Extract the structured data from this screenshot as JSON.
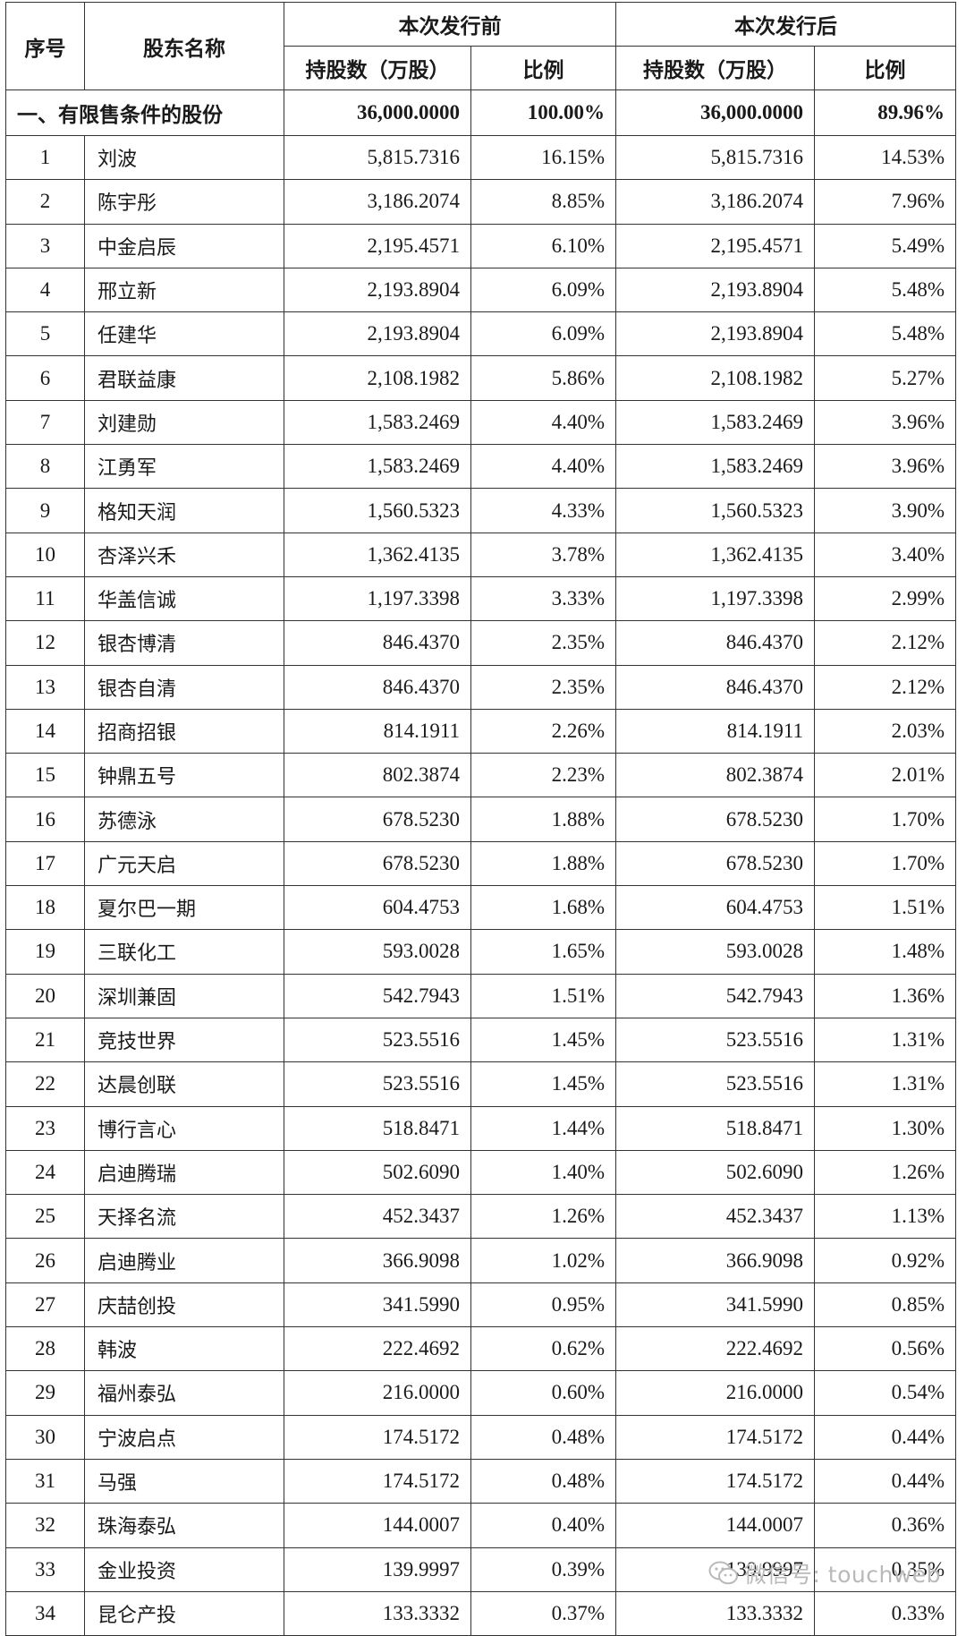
{
  "header": {
    "seq": "序号",
    "name": "股东名称",
    "before": "本次发行前",
    "after": "本次发行后",
    "shares": "持股数（万股）",
    "ratio": "比例"
  },
  "subtotal": {
    "label": "一、有限售条件的股份",
    "shares_before": "36,000.0000",
    "ratio_before": "100.00%",
    "shares_after": "36,000.0000",
    "ratio_after": "89.96%"
  },
  "rows": [
    {
      "seq": "1",
      "name": "刘波",
      "shares_before": "5,815.7316",
      "ratio_before": "16.15%",
      "shares_after": "5,815.7316",
      "ratio_after": "14.53%"
    },
    {
      "seq": "2",
      "name": "陈宇彤",
      "shares_before": "3,186.2074",
      "ratio_before": "8.85%",
      "shares_after": "3,186.2074",
      "ratio_after": "7.96%"
    },
    {
      "seq": "3",
      "name": "中金启辰",
      "shares_before": "2,195.4571",
      "ratio_before": "6.10%",
      "shares_after": "2,195.4571",
      "ratio_after": "5.49%"
    },
    {
      "seq": "4",
      "name": "邢立新",
      "shares_before": "2,193.8904",
      "ratio_before": "6.09%",
      "shares_after": "2,193.8904",
      "ratio_after": "5.48%"
    },
    {
      "seq": "5",
      "name": "任建华",
      "shares_before": "2,193.8904",
      "ratio_before": "6.09%",
      "shares_after": "2,193.8904",
      "ratio_after": "5.48%"
    },
    {
      "seq": "6",
      "name": "君联益康",
      "shares_before": "2,108.1982",
      "ratio_before": "5.86%",
      "shares_after": "2,108.1982",
      "ratio_after": "5.27%"
    },
    {
      "seq": "7",
      "name": "刘建勋",
      "shares_before": "1,583.2469",
      "ratio_before": "4.40%",
      "shares_after": "1,583.2469",
      "ratio_after": "3.96%"
    },
    {
      "seq": "8",
      "name": "江勇军",
      "shares_before": "1,583.2469",
      "ratio_before": "4.40%",
      "shares_after": "1,583.2469",
      "ratio_after": "3.96%"
    },
    {
      "seq": "9",
      "name": "格知天润",
      "shares_before": "1,560.5323",
      "ratio_before": "4.33%",
      "shares_after": "1,560.5323",
      "ratio_after": "3.90%"
    },
    {
      "seq": "10",
      "name": "杏泽兴禾",
      "shares_before": "1,362.4135",
      "ratio_before": "3.78%",
      "shares_after": "1,362.4135",
      "ratio_after": "3.40%"
    },
    {
      "seq": "11",
      "name": "华盖信诚",
      "shares_before": "1,197.3398",
      "ratio_before": "3.33%",
      "shares_after": "1,197.3398",
      "ratio_after": "2.99%"
    },
    {
      "seq": "12",
      "name": "银杏博清",
      "shares_before": "846.4370",
      "ratio_before": "2.35%",
      "shares_after": "846.4370",
      "ratio_after": "2.12%"
    },
    {
      "seq": "13",
      "name": "银杏自清",
      "shares_before": "846.4370",
      "ratio_before": "2.35%",
      "shares_after": "846.4370",
      "ratio_after": "2.12%"
    },
    {
      "seq": "14",
      "name": "招商招银",
      "shares_before": "814.1911",
      "ratio_before": "2.26%",
      "shares_after": "814.1911",
      "ratio_after": "2.03%"
    },
    {
      "seq": "15",
      "name": "钟鼎五号",
      "shares_before": "802.3874",
      "ratio_before": "2.23%",
      "shares_after": "802.3874",
      "ratio_after": "2.01%"
    },
    {
      "seq": "16",
      "name": "苏德泳",
      "shares_before": "678.5230",
      "ratio_before": "1.88%",
      "shares_after": "678.5230",
      "ratio_after": "1.70%"
    },
    {
      "seq": "17",
      "name": "广元天启",
      "shares_before": "678.5230",
      "ratio_before": "1.88%",
      "shares_after": "678.5230",
      "ratio_after": "1.70%"
    },
    {
      "seq": "18",
      "name": "夏尔巴一期",
      "shares_before": "604.4753",
      "ratio_before": "1.68%",
      "shares_after": "604.4753",
      "ratio_after": "1.51%"
    },
    {
      "seq": "19",
      "name": "三联化工",
      "shares_before": "593.0028",
      "ratio_before": "1.65%",
      "shares_after": "593.0028",
      "ratio_after": "1.48%"
    },
    {
      "seq": "20",
      "name": "深圳兼固",
      "shares_before": "542.7943",
      "ratio_before": "1.51%",
      "shares_after": "542.7943",
      "ratio_after": "1.36%"
    },
    {
      "seq": "21",
      "name": "竞技世界",
      "shares_before": "523.5516",
      "ratio_before": "1.45%",
      "shares_after": "523.5516",
      "ratio_after": "1.31%"
    },
    {
      "seq": "22",
      "name": "达晨创联",
      "shares_before": "523.5516",
      "ratio_before": "1.45%",
      "shares_after": "523.5516",
      "ratio_after": "1.31%"
    },
    {
      "seq": "23",
      "name": "博行言心",
      "shares_before": "518.8471",
      "ratio_before": "1.44%",
      "shares_after": "518.8471",
      "ratio_after": "1.30%"
    },
    {
      "seq": "24",
      "name": "启迪腾瑞",
      "shares_before": "502.6090",
      "ratio_before": "1.40%",
      "shares_after": "502.6090",
      "ratio_after": "1.26%"
    },
    {
      "seq": "25",
      "name": "天择名流",
      "shares_before": "452.3437",
      "ratio_before": "1.26%",
      "shares_after": "452.3437",
      "ratio_after": "1.13%"
    },
    {
      "seq": "26",
      "name": "启迪腾业",
      "shares_before": "366.9098",
      "ratio_before": "1.02%",
      "shares_after": "366.9098",
      "ratio_after": "0.92%"
    },
    {
      "seq": "27",
      "name": "庆喆创投",
      "shares_before": "341.5990",
      "ratio_before": "0.95%",
      "shares_after": "341.5990",
      "ratio_after": "0.85%"
    },
    {
      "seq": "28",
      "name": "韩波",
      "shares_before": "222.4692",
      "ratio_before": "0.62%",
      "shares_after": "222.4692",
      "ratio_after": "0.56%"
    },
    {
      "seq": "29",
      "name": "福州泰弘",
      "shares_before": "216.0000",
      "ratio_before": "0.60%",
      "shares_after": "216.0000",
      "ratio_after": "0.54%"
    },
    {
      "seq": "30",
      "name": "宁波启点",
      "shares_before": "174.5172",
      "ratio_before": "0.48%",
      "shares_after": "174.5172",
      "ratio_after": "0.44%"
    },
    {
      "seq": "31",
      "name": "马强",
      "shares_before": "174.5172",
      "ratio_before": "0.48%",
      "shares_after": "174.5172",
      "ratio_after": "0.44%"
    },
    {
      "seq": "32",
      "name": "珠海泰弘",
      "shares_before": "144.0007",
      "ratio_before": "0.40%",
      "shares_after": "144.0007",
      "ratio_after": "0.36%"
    },
    {
      "seq": "33",
      "name": "金业投资",
      "shares_before": "139.9997",
      "ratio_before": "0.39%",
      "shares_after": "139.9997",
      "ratio_after": "0.35%"
    },
    {
      "seq": "34",
      "name": "昆仑产投",
      "shares_before": "133.3332",
      "ratio_before": "0.37%",
      "shares_after": "133.3332",
      "ratio_after": "0.33%"
    }
  ],
  "watermark": {
    "icon": "wechat-icon",
    "text": "微信号: touchweb"
  }
}
